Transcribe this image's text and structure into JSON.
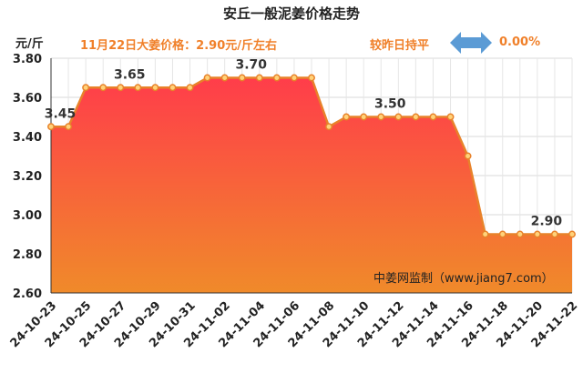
{
  "header": {
    "title": "安丘一般泥姜价格走势",
    "unit": "元/斤",
    "price_note": "11月22日大姜价格：2.90元/斤左右",
    "change_label": "较昨日持平",
    "change_value": "0.00%"
  },
  "colors": {
    "accent": "#f0802a",
    "area_top": "#ff3d4a",
    "area_bottom": "#f08a2a",
    "line": "#e8822a",
    "arrow": "#5b9bd5"
  },
  "chart_data": {
    "type": "area",
    "title": "安丘一般泥姜价格走势",
    "ylabel": "元/斤",
    "xlabel": "",
    "ylim": [
      2.6,
      3.8
    ],
    "yticks": [
      "2.60",
      "2.80",
      "3.00",
      "3.20",
      "3.40",
      "3.60",
      "3.80"
    ],
    "grid": true,
    "x": [
      "24-10-23",
      "24-10-24",
      "24-10-25",
      "24-10-26",
      "24-10-27",
      "24-10-28",
      "24-10-29",
      "24-10-30",
      "24-10-31",
      "24-11-01",
      "24-11-02",
      "24-11-03",
      "24-11-04",
      "24-11-05",
      "24-11-06",
      "24-11-07",
      "24-11-08",
      "24-11-09",
      "24-11-10",
      "24-11-11",
      "24-11-12",
      "24-11-13",
      "24-11-14",
      "24-11-15",
      "24-11-16",
      "24-11-17",
      "24-11-18",
      "24-11-19",
      "24-11-20",
      "24-11-21",
      "24-11-22"
    ],
    "xtick_labels": [
      "24-10-23",
      "24-10-25",
      "24-10-27",
      "24-10-29",
      "24-10-31",
      "24-11-02",
      "24-11-04",
      "24-11-06",
      "24-11-08",
      "24-11-10",
      "24-11-12",
      "24-11-14",
      "24-11-16",
      "24-11-18",
      "24-11-20",
      "24-11-22"
    ],
    "values": [
      3.45,
      3.45,
      3.65,
      3.65,
      3.65,
      3.65,
      3.65,
      3.65,
      3.65,
      3.7,
      3.7,
      3.7,
      3.7,
      3.7,
      3.7,
      3.7,
      3.45,
      3.5,
      3.5,
      3.5,
      3.5,
      3.5,
      3.5,
      3.5,
      3.3,
      2.9,
      2.9,
      2.9,
      2.9,
      2.9,
      2.9
    ],
    "annotations": [
      {
        "index": 0,
        "text": "3.45"
      },
      {
        "index": 4,
        "text": "3.65"
      },
      {
        "index": 11,
        "text": "3.70"
      },
      {
        "index": 19,
        "text": "3.50"
      },
      {
        "index": 28,
        "text": "2.90"
      }
    ],
    "watermark": "中姜网监制（www.jiang7.com）"
  }
}
